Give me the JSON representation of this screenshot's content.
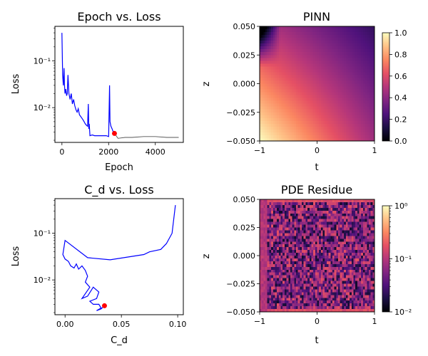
{
  "chart_data": [
    {
      "type": "line",
      "title": "Epoch vs. Loss",
      "xlabel": "Epoch",
      "ylabel": "Loss",
      "xlim": [
        -300,
        5200
      ],
      "ylim": [
        0.0018,
        0.55
      ],
      "yscale": "log",
      "xticks": [
        0,
        2000,
        4000
      ],
      "xtick_labels": [
        "0",
        "2000",
        "4000"
      ],
      "yticks": [
        0.01,
        0.1
      ],
      "ytick_labels": [
        "10⁻²",
        "10⁻¹"
      ],
      "series": [
        {
          "color": "#0000ff",
          "x": [
            0,
            30,
            60,
            90,
            110,
            130,
            160,
            200,
            230,
            260,
            300,
            350,
            400,
            450,
            500,
            550,
            600,
            650,
            700,
            750,
            800,
            850,
            900,
            950,
            1000,
            1050,
            1100,
            1130,
            1150,
            1170,
            1200,
            1300,
            1400,
            1500,
            1600,
            1700,
            1800,
            1900,
            2000,
            2040,
            2060,
            2100,
            2150,
            2200,
            2250
          ],
          "y": [
            0.4,
            0.05,
            0.03,
            0.07,
            0.03,
            0.02,
            0.025,
            0.018,
            0.02,
            0.05,
            0.02,
            0.015,
            0.02,
            0.012,
            0.015,
            0.011,
            0.009,
            0.008,
            0.0095,
            0.007,
            0.0065,
            0.006,
            0.0055,
            0.005,
            0.0045,
            0.0042,
            0.004,
            0.012,
            0.0035,
            0.0045,
            0.0025,
            0.0026,
            0.0025,
            0.0025,
            0.0025,
            0.0025,
            0.0025,
            0.0025,
            0.0024,
            0.03,
            0.005,
            0.004,
            0.0035,
            0.003,
            0.0028
          ]
        },
        {
          "color": "#555555",
          "x": [
            2250,
            2400,
            2700,
            3000,
            3500,
            4000,
            4500,
            5000
          ],
          "y": [
            0.0028,
            0.0022,
            0.0023,
            0.0023,
            0.0024,
            0.0024,
            0.0023,
            0.0023
          ]
        }
      ],
      "marker": {
        "x": 2250,
        "y": 0.0028,
        "color": "#ff0000"
      }
    },
    {
      "type": "heatmap",
      "title": "PINN",
      "xlabel": "t",
      "ylabel": "z",
      "xlim": [
        -1,
        1
      ],
      "ylim": [
        -0.05,
        0.05
      ],
      "xticks": [
        -1,
        0,
        1
      ],
      "xtick_labels": [
        "−1",
        "0",
        "1"
      ],
      "yticks": [
        -0.05,
        -0.025,
        0.0,
        0.025,
        0.05
      ],
      "ytick_labels": [
        "−0.050",
        "−0.025",
        "0.000",
        "0.025",
        "0.050"
      ],
      "colormap": "magma",
      "colorbar": {
        "scale": "linear",
        "ticks": [
          0.0,
          0.2,
          0.4,
          0.6,
          0.8,
          1.0
        ],
        "tick_labels": [
          "0.0",
          "0.2",
          "0.4",
          "0.6",
          "0.8",
          "1.0"
        ]
      }
    },
    {
      "type": "line",
      "title": "C_d vs. Loss",
      "xlabel": "C_d",
      "ylabel": "Loss",
      "xlim": [
        -0.009,
        0.105
      ],
      "ylim": [
        0.0018,
        0.55
      ],
      "yscale": "log",
      "xticks": [
        0.0,
        0.05,
        0.1
      ],
      "xtick_labels": [
        "0.00",
        "0.05",
        "0.10"
      ],
      "yticks": [
        0.01,
        0.1
      ],
      "ytick_labels": [
        "10⁻²",
        "10⁻¹"
      ],
      "series": [
        {
          "color": "#0000ff",
          "x": [
            0.098,
            0.095,
            0.09,
            0.085,
            0.075,
            0.07,
            0.04,
            0.02,
            0.0,
            -0.002,
            0.0,
            0.003,
            0.005,
            0.008,
            0.01,
            0.012,
            0.015,
            0.018,
            0.02,
            0.018,
            0.022,
            0.015,
            0.02,
            0.025,
            0.03,
            0.028,
            0.022,
            0.025,
            0.03,
            0.032,
            0.028,
            0.032,
            0.035
          ],
          "y": [
            0.4,
            0.1,
            0.06,
            0.045,
            0.04,
            0.035,
            0.027,
            0.03,
            0.07,
            0.035,
            0.028,
            0.025,
            0.02,
            0.018,
            0.022,
            0.017,
            0.02,
            0.016,
            0.012,
            0.009,
            0.007,
            0.004,
            0.0045,
            0.007,
            0.0055,
            0.004,
            0.0035,
            0.003,
            0.003,
            0.0025,
            0.0022,
            0.0024,
            0.0028
          ]
        }
      ],
      "marker": {
        "x": 0.035,
        "y": 0.0028,
        "color": "#ff0000"
      }
    },
    {
      "type": "heatmap",
      "title": "PDE Residue",
      "xlabel": "t",
      "ylabel": "z",
      "xlim": [
        -1,
        1
      ],
      "ylim": [
        -0.05,
        0.05
      ],
      "xticks": [
        -1,
        0,
        1
      ],
      "xtick_labels": [
        "−1",
        "0",
        "1"
      ],
      "yticks": [
        -0.05,
        -0.025,
        0.0,
        0.025,
        0.05
      ],
      "ytick_labels": [
        "−0.050",
        "−0.025",
        "0.000",
        "0.025",
        "0.050"
      ],
      "colormap": "magma",
      "colorbar": {
        "scale": "log",
        "ticks": [
          0.01,
          0.1,
          1
        ],
        "tick_labels": [
          "10⁻²",
          "10⁻¹",
          "10⁰"
        ]
      }
    }
  ]
}
